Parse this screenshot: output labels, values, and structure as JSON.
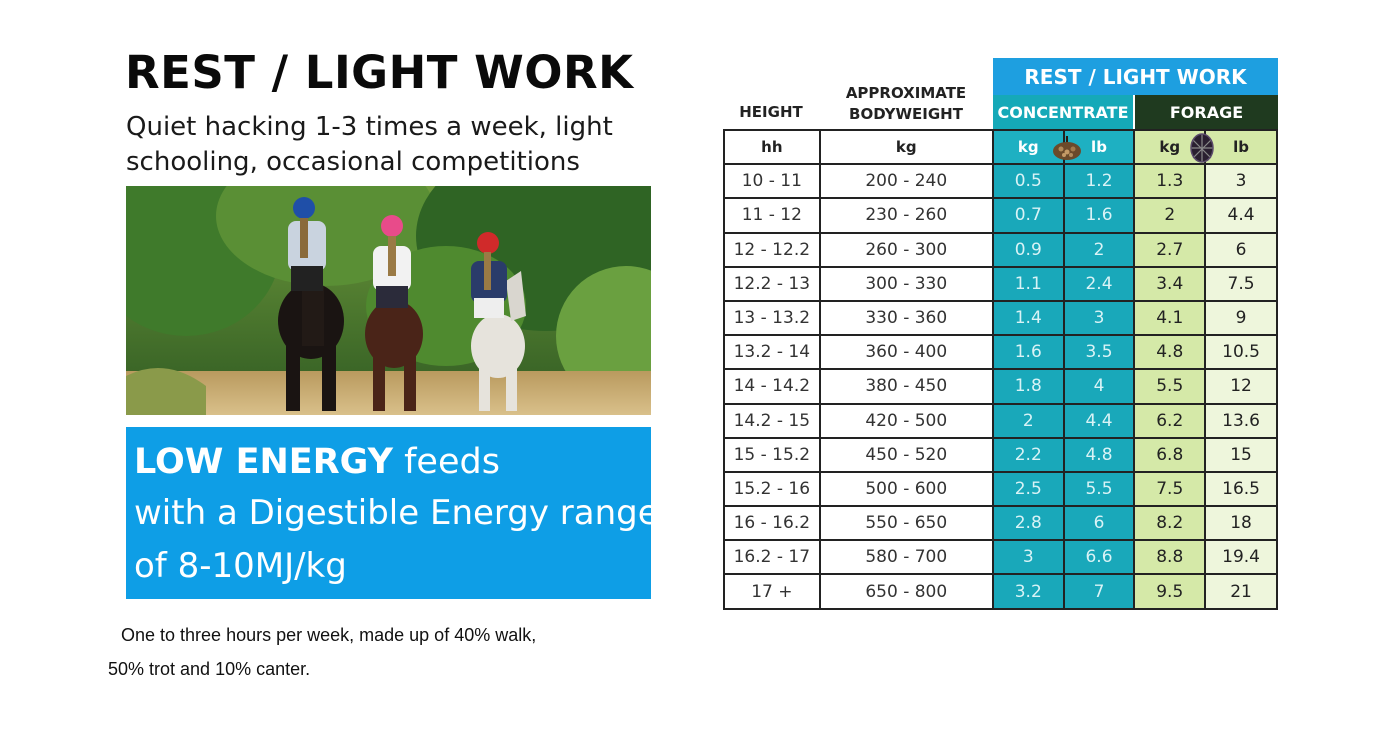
{
  "title": "REST / LIGHT WORK",
  "subtitle": "Quiet hacking 1-3 times a week, light schooling, occasional competitions",
  "energy": {
    "strong": "LOW ENERGY",
    "line1_rest": " feeds",
    "line2": "with a Digestible Energy range",
    "line3": "of 8-10MJ/kg"
  },
  "notes": {
    "line1": "One to three hours per week, made up of 40% walk,",
    "line2": "50% trot and 10% canter."
  },
  "table": {
    "top_header": "REST / LIGHT WORK",
    "concentrate_header": "CONCENTRATE",
    "forage_header": "FORAGE",
    "height_header": "HEIGHT",
    "bodyweight_header": "APPROXIMATE BODYWEIGHT",
    "units": {
      "height": "hh",
      "bodyweight": "kg",
      "conc_kg": "kg",
      "conc_lb": "lb",
      "forage_kg": "kg",
      "forage_lb": "lb"
    },
    "rows": [
      {
        "height": "10 - 11",
        "bodyweight": "200 - 240",
        "conc_kg": "0.5",
        "conc_lb": "1.2",
        "forage_kg": "1.3",
        "forage_lb": "3"
      },
      {
        "height": "11 - 12",
        "bodyweight": "230 - 260",
        "conc_kg": "0.7",
        "conc_lb": "1.6",
        "forage_kg": "2",
        "forage_lb": "4.4"
      },
      {
        "height": "12 - 12.2",
        "bodyweight": "260 - 300",
        "conc_kg": "0.9",
        "conc_lb": "2",
        "forage_kg": "2.7",
        "forage_lb": "6"
      },
      {
        "height": "12.2 - 13",
        "bodyweight": "300 - 330",
        "conc_kg": "1.1",
        "conc_lb": "2.4",
        "forage_kg": "3.4",
        "forage_lb": "7.5"
      },
      {
        "height": "13 - 13.2",
        "bodyweight": "330 - 360",
        "conc_kg": "1.4",
        "conc_lb": "3",
        "forage_kg": "4.1",
        "forage_lb": "9"
      },
      {
        "height": "13.2 - 14",
        "bodyweight": "360 - 400",
        "conc_kg": "1.6",
        "conc_lb": "3.5",
        "forage_kg": "4.8",
        "forage_lb": "10.5"
      },
      {
        "height": "14 - 14.2",
        "bodyweight": "380 - 450",
        "conc_kg": "1.8",
        "conc_lb": "4",
        "forage_kg": "5.5",
        "forage_lb": "12"
      },
      {
        "height": "14.2 - 15",
        "bodyweight": "420 - 500",
        "conc_kg": "2",
        "conc_lb": "4.4",
        "forage_kg": "6.2",
        "forage_lb": "13.6"
      },
      {
        "height": "15 - 15.2",
        "bodyweight": "450 - 520",
        "conc_kg": "2.2",
        "conc_lb": "4.8",
        "forage_kg": "6.8",
        "forage_lb": "15"
      },
      {
        "height": "15.2 - 16",
        "bodyweight": "500 - 600",
        "conc_kg": "2.5",
        "conc_lb": "5.5",
        "forage_kg": "7.5",
        "forage_lb": "16.5"
      },
      {
        "height": "16 - 16.2",
        "bodyweight": "550 - 650",
        "conc_kg": "2.8",
        "conc_lb": "6",
        "forage_kg": "8.2",
        "forage_lb": "18"
      },
      {
        "height": "16.2 - 17",
        "bodyweight": "580 - 700",
        "conc_kg": "3",
        "conc_lb": "6.6",
        "forage_kg": "8.8",
        "forage_lb": "19.4"
      },
      {
        "height": "17 +",
        "bodyweight": "650 - 800",
        "conc_kg": "3.2",
        "conc_lb": "7",
        "forage_kg": "9.5",
        "forage_lb": "21"
      }
    ]
  },
  "colors": {
    "energy_box": "#0e9ee6",
    "top_header": "#1e9fe0",
    "concentrate": "#19a8ba",
    "forage_dark": "#1f3a1f",
    "forage_light": "#d5e9a8"
  },
  "icons": {
    "concentrate": "feed-bowl-icon",
    "forage": "haynet-icon"
  }
}
